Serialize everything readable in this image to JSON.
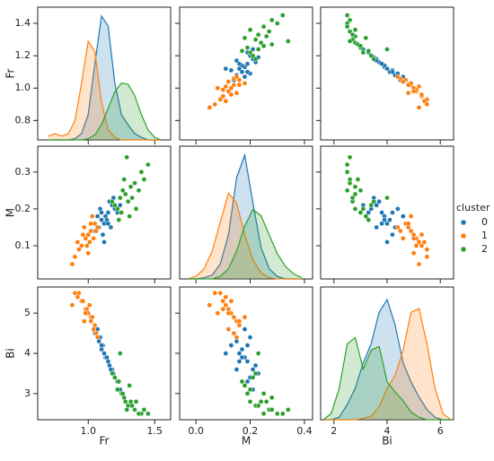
{
  "chart_data": {
    "type": "pairplot",
    "variables": [
      "Fr",
      "M",
      "Bi"
    ],
    "legend_title": "cluster",
    "legend": "right",
    "axes": {
      "Fr": {
        "xlim": [
          0.62,
          1.62
        ],
        "xticks": [
          {
            "value": 1,
            "label": "1.0"
          },
          1.5
        ],
        "ylim": [
          0.68,
          1.5
        ],
        "yticks": [
          0.8,
          {
            "value": 1,
            "label": "1.0"
          },
          1.2,
          1.4
        ]
      },
      "M": {
        "xlim": [
          -0.06,
          0.43
        ],
        "xticks": [
          {
            "value": 0,
            "label": "0.0"
          },
          0.2,
          0.4
        ],
        "ylim": [
          0.01,
          0.37
        ],
        "yticks": [
          0.1,
          0.2,
          0.3
        ]
      },
      "Bi": {
        "xlim": [
          1.5,
          6.5
        ],
        "xticks": [
          2,
          4,
          6
        ],
        "ylim": [
          2.35,
          5.65
        ],
        "yticks": [
          3,
          4,
          5
        ]
      }
    },
    "kde_x": {
      "Fr": [
        0.7,
        0.75,
        0.8,
        0.85,
        0.9,
        0.95,
        1.0,
        1.05,
        1.1,
        1.15,
        1.2,
        1.25,
        1.3,
        1.35,
        1.4,
        1.45,
        1.5,
        1.55
      ],
      "M": [
        -0.03,
        0.0,
        0.03,
        0.06,
        0.09,
        0.12,
        0.15,
        0.18,
        0.21,
        0.24,
        0.27,
        0.3,
        0.33,
        0.36,
        0.39
      ],
      "Bi": [
        1.6,
        1.9,
        2.2,
        2.5,
        2.8,
        3.1,
        3.4,
        3.7,
        4.0,
        4.3,
        4.6,
        4.9,
        5.2,
        5.5,
        5.8,
        6.1,
        6.4
      ]
    },
    "density_lim": [
      0,
      1.05
    ],
    "series": [
      {
        "name": "0",
        "color": "#1f77b4",
        "Fr": [
          1.1,
          1.15,
          1.12,
          1.18,
          1.08,
          1.2,
          1.13,
          1.05,
          1.16,
          1.11,
          1.22,
          1.09,
          1.14,
          1.17,
          1.07,
          1.19,
          1.12,
          1.24,
          1.1,
          1.15
        ],
        "M": [
          0.17,
          0.19,
          0.16,
          0.21,
          0.15,
          0.2,
          0.18,
          0.14,
          0.22,
          0.13,
          0.19,
          0.2,
          0.17,
          0.15,
          0.18,
          0.23,
          0.11,
          0.21,
          0.19,
          0.16
        ],
        "Bi": [
          4.1,
          3.8,
          4.0,
          3.6,
          4.3,
          3.4,
          3.9,
          4.5,
          3.7,
          4.2,
          3.3,
          4.4,
          3.9,
          3.6,
          4.6,
          3.5,
          4.0,
          3.1,
          4.2,
          3.8
        ],
        "kde": {
          "Fr": [
            0,
            0,
            0,
            0,
            0.01,
            0.05,
            0.2,
            0.6,
            0.98,
            0.9,
            0.45,
            0.2,
            0.12,
            0.05,
            0.02,
            0,
            0,
            0
          ],
          "M": [
            0,
            0,
            0.01,
            0.03,
            0.12,
            0.35,
            0.8,
            0.98,
            0.6,
            0.25,
            0.08,
            0.02,
            0,
            0,
            0
          ],
          "Bi": [
            0,
            0,
            0.02,
            0.12,
            0.25,
            0.45,
            0.6,
            0.85,
            0.95,
            0.75,
            0.45,
            0.3,
            0.18,
            0.08,
            0.02,
            0,
            0
          ]
        }
      },
      {
        "name": "1",
        "color": "#ff7f0e",
        "Fr": [
          0.98,
          1.02,
          0.95,
          1.0,
          1.05,
          0.93,
          1.01,
          0.97,
          1.04,
          0.9,
          1.03,
          0.99,
          1.06,
          0.96,
          1.0,
          0.92,
          1.02,
          0.88,
          1.07,
          0.98
        ],
        "M": [
          0.12,
          0.14,
          0.1,
          0.13,
          0.16,
          0.09,
          0.11,
          0.15,
          0.12,
          0.07,
          0.18,
          0.1,
          0.14,
          0.13,
          0.08,
          0.11,
          0.16,
          0.05,
          0.15,
          0.12
        ],
        "Bi": [
          5.1,
          4.9,
          5.3,
          5.0,
          4.7,
          5.5,
          5.2,
          4.8,
          4.6,
          5.5,
          4.9,
          5.1,
          4.5,
          5.3,
          5.0,
          5.4,
          4.8,
          5.2,
          4.4,
          5.0
        ],
        "kde": {
          "Fr": [
            0.03,
            0.05,
            0.03,
            0.05,
            0.15,
            0.45,
            0.78,
            0.7,
            0.3,
            0.08,
            0.02,
            0,
            0,
            0,
            0,
            0,
            0,
            0
          ],
          "M": [
            0,
            0.02,
            0.08,
            0.22,
            0.45,
            0.68,
            0.6,
            0.35,
            0.15,
            0.05,
            0.01,
            0,
            0,
            0,
            0
          ],
          "Bi": [
            0,
            0,
            0,
            0,
            0,
            0.01,
            0.03,
            0.1,
            0.25,
            0.35,
            0.55,
            0.85,
            0.88,
            0.6,
            0.25,
            0.05,
            0
          ]
        }
      },
      {
        "name": "2",
        "color": "#2ca02c",
        "Fr": [
          1.28,
          1.35,
          1.22,
          1.3,
          1.4,
          1.25,
          1.32,
          1.2,
          1.38,
          1.27,
          1.45,
          1.23,
          1.33,
          1.29,
          1.18,
          1.36,
          1.26,
          1.42,
          1.31,
          1.24
        ],
        "M": [
          0.24,
          0.27,
          0.2,
          0.22,
          0.3,
          0.19,
          0.26,
          0.21,
          0.25,
          0.28,
          0.32,
          0.17,
          0.23,
          0.34,
          0.22,
          0.2,
          0.25,
          0.28,
          0.18,
          0.23
        ],
        "Bi": [
          2.8,
          2.6,
          3.1,
          2.7,
          2.5,
          3.0,
          2.8,
          3.4,
          2.5,
          2.9,
          2.5,
          3.3,
          2.7,
          2.6,
          3.5,
          2.8,
          3.0,
          2.6,
          3.2,
          4.0
        ],
        "kde": {
          "Fr": [
            0,
            0,
            0,
            0,
            0,
            0,
            0.01,
            0.04,
            0.12,
            0.25,
            0.38,
            0.45,
            0.44,
            0.35,
            0.2,
            0.08,
            0.02,
            0
          ],
          "M": [
            0,
            0,
            0,
            0,
            0.02,
            0.08,
            0.22,
            0.42,
            0.55,
            0.5,
            0.35,
            0.2,
            0.1,
            0.04,
            0.01
          ],
          "Bi": [
            0,
            0.05,
            0.25,
            0.6,
            0.65,
            0.4,
            0.55,
            0.58,
            0.3,
            0.22,
            0.15,
            0.06,
            0.02,
            0,
            0,
            0,
            0
          ]
        }
      }
    ]
  }
}
